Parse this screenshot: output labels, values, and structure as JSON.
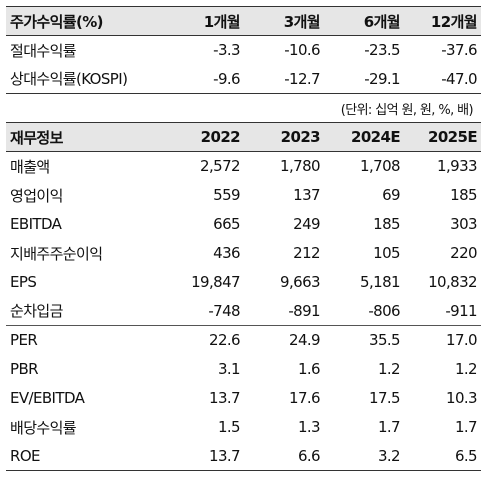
{
  "stock_returns": {
    "header": [
      "주가수익률(%)",
      "1개월",
      "3개월",
      "6개월",
      "12개월"
    ],
    "rows": [
      [
        "절대수익률",
        "-3.3",
        "-10.6",
        "-23.5",
        "-37.6"
      ],
      [
        "상대수익률(KOSPI)",
        "-9.6",
        "-12.7",
        "-29.1",
        "-47.0"
      ]
    ]
  },
  "unit_note": "(단위: 십억 원, 원, %, 배)",
  "financials": {
    "header": [
      "재무정보",
      "2022",
      "2023",
      "2024E",
      "2025E"
    ],
    "rows_a": [
      [
        "매출액",
        "2,572",
        "1,780",
        "1,708",
        "1,933"
      ],
      [
        "영업이익",
        "559",
        "137",
        "69",
        "185"
      ],
      [
        "EBITDA",
        "665",
        "249",
        "185",
        "303"
      ],
      [
        "지배주주순이익",
        "436",
        "212",
        "105",
        "220"
      ],
      [
        "EPS",
        "19,847",
        "9,663",
        "5,181",
        "10,832"
      ],
      [
        "순차입금",
        "-748",
        "-891",
        "-806",
        "-911"
      ]
    ],
    "rows_b": [
      [
        "PER",
        "22.6",
        "24.9",
        "35.5",
        "17.0"
      ],
      [
        "PBR",
        "3.1",
        "1.6",
        "1.2",
        "1.2"
      ],
      [
        "EV/EBITDA",
        "13.7",
        "17.6",
        "17.5",
        "10.3"
      ],
      [
        "배당수익률",
        "1.5",
        "1.3",
        "1.7",
        "1.7"
      ],
      [
        "ROE",
        "13.7",
        "6.6",
        "3.2",
        "6.5"
      ]
    ]
  }
}
